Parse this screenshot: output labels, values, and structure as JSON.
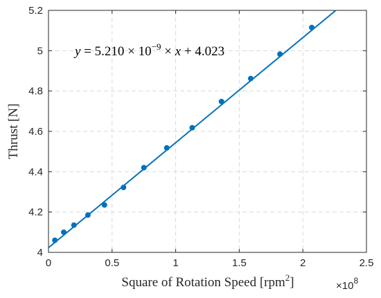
{
  "chart_data": {
    "type": "scatter",
    "title": "",
    "xlabel": "Square of Rotation Speed [rpm",
    "xlabel_sup": "2",
    "xlabel_end": "]",
    "ylabel": "Thrust [N]",
    "x_multiplier": "×10",
    "x_multiplier_exp": "8",
    "xlim": [
      0,
      2.5
    ],
    "ylim": [
      4,
      5.2
    ],
    "xticks": [
      0,
      0.5,
      1,
      1.5,
      2,
      2.5
    ],
    "xtick_labels": [
      "0",
      "0.5",
      "1",
      "1.5",
      "2",
      "2.5"
    ],
    "yticks": [
      4,
      4.2,
      4.4,
      4.6,
      4.8,
      5,
      5.2
    ],
    "ytick_labels": [
      "4",
      "4.2",
      "4.4",
      "4.6",
      "4.8",
      "5",
      "5.2"
    ],
    "grid": true,
    "series": [
      {
        "marker_color": "#0072BD",
        "points": [
          {
            "x": 0.05,
            "y": 4.06
          },
          {
            "x": 0.12,
            "y": 4.1
          },
          {
            "x": 0.2,
            "y": 4.135
          },
          {
            "x": 0.31,
            "y": 4.185
          },
          {
            "x": 0.44,
            "y": 4.235
          },
          {
            "x": 0.59,
            "y": 4.322
          },
          {
            "x": 0.75,
            "y": 4.42
          },
          {
            "x": 0.93,
            "y": 4.518
          },
          {
            "x": 1.13,
            "y": 4.618
          },
          {
            "x": 1.36,
            "y": 4.748
          },
          {
            "x": 1.59,
            "y": 4.862
          },
          {
            "x": 1.82,
            "y": 4.983
          },
          {
            "x": 2.07,
            "y": 5.115
          }
        ]
      }
    ],
    "fit": {
      "slope": 0.521,
      "intercept": 4.023,
      "color": "#0072BD"
    },
    "annotation": {
      "y_var": "y",
      "equals": " = 5.210 × 10",
      "exponent": "−9",
      "times": " × ",
      "x_var": "x",
      "rest": " + 4.023"
    }
  }
}
